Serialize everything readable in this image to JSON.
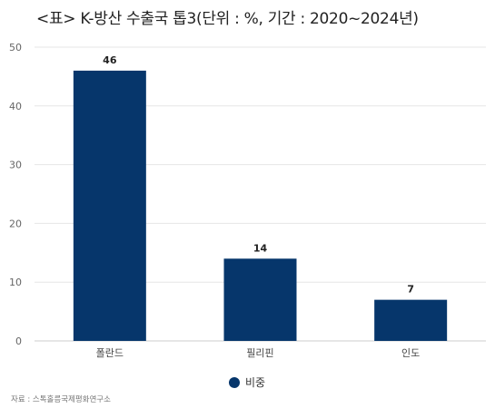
{
  "title": "<표> K-방산 수출국 톱3(단위 : %, 기간 : 2020~2024년)",
  "source": "자료 : 스톡홀름국제평화연구소",
  "colors": {
    "bar": "#06366b",
    "grid": "#e6e6e6",
    "axis": "#cccccc",
    "tick_text": "#666666",
    "label_text": "#222222"
  },
  "chart_data": {
    "type": "bar",
    "title": "<표> K-방산 수출국 톱3(단위 : %, 기간 : 2020~2024년)",
    "categories": [
      "폴란드",
      "필리핀",
      "인도"
    ],
    "series": [
      {
        "name": "비중",
        "values": [
          46,
          14,
          7
        ]
      }
    ],
    "yticks": [
      0,
      10,
      20,
      30,
      40,
      50
    ],
    "ylim": [
      0,
      50
    ],
    "grid": true,
    "legend": "bottom-center",
    "data_labels": true,
    "xlabel": "",
    "ylabel": ""
  }
}
